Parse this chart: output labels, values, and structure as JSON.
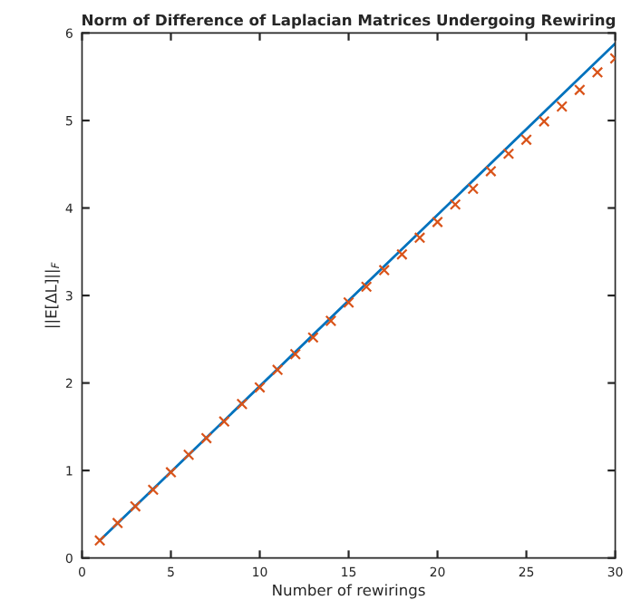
{
  "chart_data": {
    "type": "scatter",
    "title": "Norm of Difference of Laplacian Matrices Undergoing Rewiring",
    "xlabel": "Number of rewirings",
    "ylabel": "||E[ΔL]||$_{F}$",
    "xlim": [
      0,
      30
    ],
    "ylim": [
      0,
      6
    ],
    "xticks": [
      0,
      5,
      10,
      15,
      20,
      25,
      30
    ],
    "yticks": [
      0,
      1,
      2,
      3,
      4,
      5,
      6
    ],
    "grid": false,
    "legend": false,
    "series": [
      {
        "type": "line",
        "color": "#0072bd",
        "x": [
          1,
          30
        ],
        "values": [
          0.2,
          5.88
        ],
        "marker": "none",
        "line_style": "solid"
      },
      {
        "color": "#d95319",
        "marker": "cross",
        "x": [
          1,
          2,
          3,
          4,
          5,
          6,
          7,
          8,
          9,
          10,
          11,
          12,
          13,
          14,
          15,
          16,
          17,
          18,
          19,
          20,
          21,
          22,
          23,
          24,
          25,
          26,
          27,
          28,
          29,
          30
        ],
        "values": [
          0.2,
          0.4,
          0.59,
          0.78,
          0.98,
          1.18,
          1.37,
          1.56,
          1.76,
          1.95,
          2.15,
          2.33,
          2.52,
          2.71,
          2.92,
          3.1,
          3.29,
          3.47,
          3.66,
          3.84,
          4.04,
          4.22,
          4.42,
          4.62,
          4.78,
          4.99,
          5.16,
          5.35,
          5.55,
          5.71
        ]
      }
    ]
  }
}
